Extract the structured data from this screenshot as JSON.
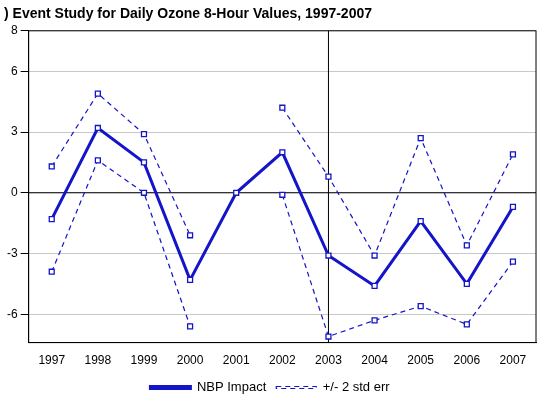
{
  "chart_data": {
    "type": "line",
    "title": ") Event Study for Daily Ozone 8-Hour Values, 1997-2007",
    "categories": [
      "1997",
      "1998",
      "1999",
      "2000",
      "2001",
      "2002",
      "2003",
      "2004",
      "2005",
      "2006",
      "2007"
    ],
    "series": [
      {
        "name": "NBP Impact",
        "color": "#1414c8",
        "line_style": "solid",
        "marker": "square",
        "values": [
          -1.3,
          3.2,
          1.5,
          -4.3,
          0.0,
          2.0,
          -3.1,
          -4.6,
          -1.4,
          -4.5,
          -0.7
        ]
      },
      {
        "name": "+/- 2 std err",
        "color": "#1414c8",
        "line_style": "dashed",
        "marker": "square",
        "values": [
          1.3,
          4.9,
          2.9,
          -2.1,
          null,
          4.2,
          0.8,
          -3.1,
          2.7,
          -2.6,
          1.9
        ]
      },
      {
        "name": "+/- 2 std err",
        "color": "#1414c8",
        "line_style": "dashed",
        "marker": "square",
        "values": [
          -3.9,
          1.6,
          0.0,
          -6.6,
          null,
          -0.1,
          -7.1,
          -6.3,
          -5.6,
          -6.5,
          -3.4
        ]
      }
    ],
    "ylim": [
      -7.4,
      8
    ],
    "yticks": [
      -6,
      -3,
      0,
      3,
      6,
      8
    ],
    "grid": true,
    "legend": "bottom",
    "vline": "2003",
    "hline": 0
  }
}
